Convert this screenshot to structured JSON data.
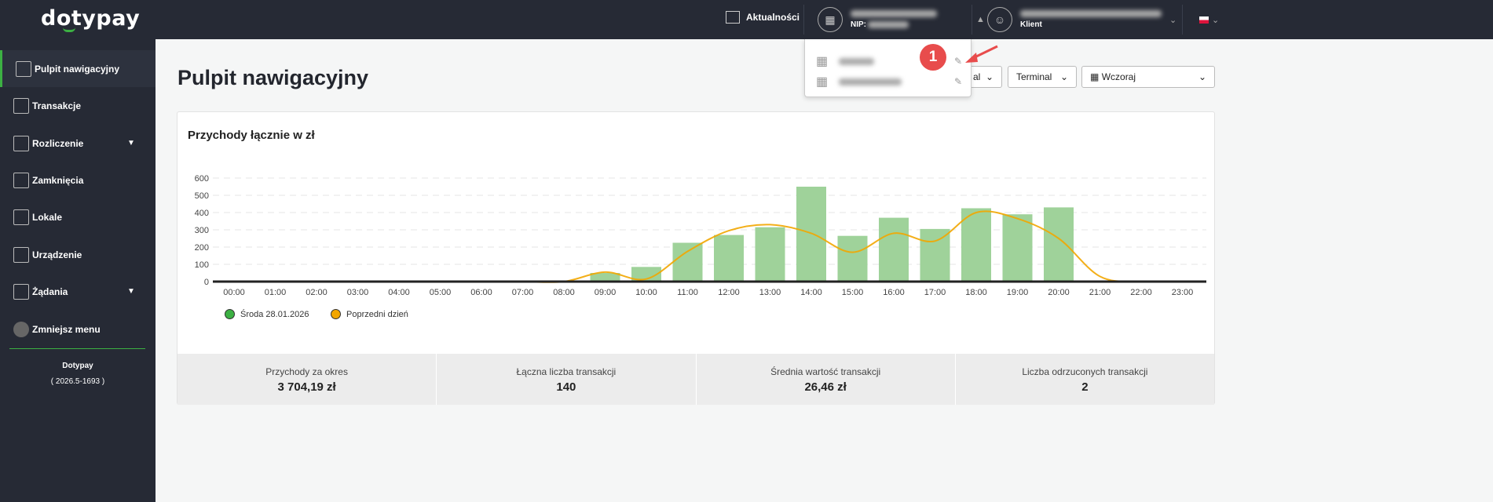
{
  "header": {
    "logo": "dotypay",
    "news_label": "Aktualności",
    "company_nip_label": "NIP:",
    "user_role": "Klient"
  },
  "sidebar": {
    "items": [
      {
        "label": "Pulpit nawigacyjny",
        "icon": "dashboard-icon",
        "active": true
      },
      {
        "label": "Transakcje",
        "icon": "transactions-icon"
      },
      {
        "label": "Rozliczenie",
        "icon": "receipt-icon",
        "expandable": true
      },
      {
        "label": "Zamknięcia",
        "icon": "closing-icon"
      },
      {
        "label": "Lokale",
        "icon": "locations-icon"
      },
      {
        "label": "Urządzenie",
        "icon": "device-icon"
      },
      {
        "label": "Żądania",
        "icon": "requests-icon",
        "expandable": true
      },
      {
        "label": "Zmniejsz menu",
        "icon": "collapse-icon"
      }
    ],
    "brand": "Dotypay",
    "version": "( 2026.5-1693 )"
  },
  "main": {
    "title": "Pulpit nawigacyjny",
    "filters": {
      "first_partial": "al",
      "terminal": "Terminal",
      "period": "Wczoraj"
    }
  },
  "popup": {
    "badge": "1"
  },
  "stats": [
    {
      "label": "Przychody za okres",
      "value": "3 704,19 zł"
    },
    {
      "label": "Łączna liczba transakcji",
      "value": "140"
    },
    {
      "label": "Średnia wartość transakcji",
      "value": "26,46 zł"
    },
    {
      "label": "Liczba odrzuconych transakcji",
      "value": "2"
    }
  ],
  "chart_data": {
    "type": "bar",
    "title": "Przychody łącznie w zł",
    "categories": [
      "00:00",
      "01:00",
      "02:00",
      "03:00",
      "04:00",
      "05:00",
      "06:00",
      "07:00",
      "08:00",
      "09:00",
      "10:00",
      "11:00",
      "12:00",
      "13:00",
      "14:00",
      "15:00",
      "16:00",
      "17:00",
      "18:00",
      "19:00",
      "20:00",
      "21:00",
      "22:00",
      "23:00"
    ],
    "yticks": [
      0,
      100,
      200,
      300,
      400,
      500,
      600
    ],
    "ylim": [
      0,
      600
    ],
    "series": [
      {
        "name": "Środa 28.01.2026",
        "type": "bar",
        "color": "#9fd29a",
        "values": [
          0,
          0,
          0,
          0,
          0,
          0,
          0,
          0,
          0,
          50,
          85,
          225,
          270,
          315,
          550,
          265,
          370,
          305,
          425,
          390,
          430,
          0,
          0,
          0
        ]
      },
      {
        "name": "Poprzedni dzień",
        "type": "line",
        "color": "#f2a600",
        "values": [
          0,
          0,
          0,
          0,
          0,
          0,
          0,
          0,
          0,
          55,
          15,
          175,
          295,
          330,
          280,
          170,
          280,
          235,
          400,
          365,
          250,
          30,
          0,
          0
        ]
      }
    ],
    "legend": "bottom-left",
    "grid": true
  }
}
